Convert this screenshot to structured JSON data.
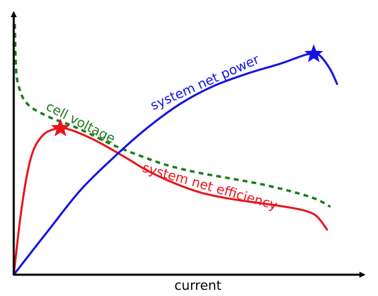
{
  "chart_data": {
    "type": "line",
    "title": "",
    "xlabel": "current",
    "ylabel": "",
    "xlim": [
      0,
      100
    ],
    "ylim": [
      0,
      100
    ],
    "grid": false,
    "ticks": false,
    "series": [
      {
        "name": "cell voltage",
        "color": "#1f7a1f",
        "style": "dashed",
        "x": [
          0.3,
          0.6,
          1,
          2,
          3,
          5,
          8,
          12,
          17,
          23,
          30,
          38,
          46,
          55,
          65,
          75,
          85,
          91,
          95
        ],
        "y": [
          100,
          85,
          78,
          73,
          70,
          67,
          64.6,
          62.1,
          59.7,
          56.1,
          51.6,
          47.4,
          43.7,
          40.8,
          38.4,
          35.9,
          32.6,
          30,
          27.1
        ]
      },
      {
        "name": "system net efficiency",
        "color": "#e8141b",
        "style": "solid",
        "x": [
          0,
          2,
          4,
          6,
          9,
          12,
          14,
          16,
          20,
          25,
          30,
          35,
          40,
          48,
          56,
          64,
          72,
          80,
          86,
          90,
          92,
          94
        ],
        "y": [
          0,
          23,
          40,
          50,
          56,
          58,
          58.4,
          58.2,
          56.3,
          53.2,
          49.5,
          45.6,
          41.6,
          36.6,
          32.8,
          30.5,
          28.9,
          27.4,
          26,
          24.2,
          21.7,
          18
        ]
      },
      {
        "name": "system net power",
        "color": "#1414e0",
        "style": "solid",
        "x": [
          0,
          10,
          20,
          30,
          40,
          50,
          60,
          70,
          80,
          85,
          88,
          90,
          92,
          95,
          97
        ],
        "y": [
          0,
          17,
          33.7,
          46.8,
          58.5,
          68.2,
          75.3,
          80.2,
          84.2,
          86.6,
          87.9,
          88,
          87.2,
          81.8,
          76.1
        ]
      }
    ],
    "markers": [
      {
        "series": "system net efficiency",
        "shape": "star",
        "x": 14,
        "y": 58.4
      },
      {
        "series": "system net power",
        "shape": "star",
        "x": 90,
        "y": 88
      }
    ],
    "annotations": [
      {
        "text": "cell voltage",
        "color": "#1f7a1f",
        "x": 20,
        "y": 60.5,
        "rotate": 27
      },
      {
        "text": "system net power",
        "color": "#1414e0",
        "x": 57.4,
        "y": 76.5,
        "rotate": -24
      },
      {
        "text": "system net efficiency",
        "color": "#e8141b",
        "x": 58.8,
        "y": 35,
        "rotate": 16
      }
    ]
  }
}
